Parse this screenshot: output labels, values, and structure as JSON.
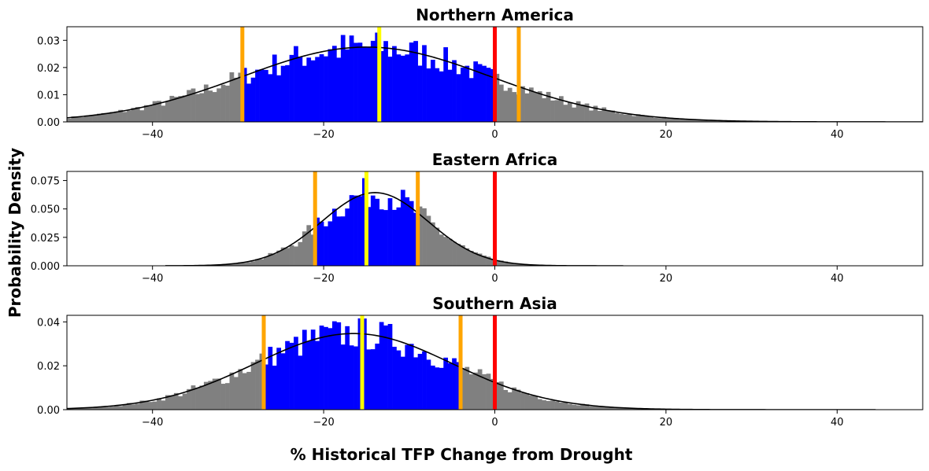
{
  "figure": {
    "ylabel": "Probability Density",
    "xlabel": "% Historical TFP Change from Drought"
  },
  "colors": {
    "tail": "#808080",
    "central": "#0000ff",
    "kde": "#000000",
    "median_line": "#ffff00",
    "range_lines": "#ffa500",
    "zero_line": "#ff0000"
  },
  "chart_data": [
    {
      "type": "bar",
      "title": "Northern America",
      "xlim": [
        -50,
        50
      ],
      "ylim": [
        0,
        0.035
      ],
      "x_ticks": [
        -40,
        -20,
        0,
        20,
        40
      ],
      "y_ticks": [
        0.0,
        0.01,
        0.02,
        0.03
      ],
      "y_tick_labels": [
        "0.00",
        "0.01",
        "0.02",
        "0.03"
      ],
      "distribution": {
        "mean": -15,
        "sd": 14.5,
        "kde_x_range": [
          -50,
          50
        ]
      },
      "shaded_range": [
        -29.5,
        0
      ],
      "vertical_lines": [
        {
          "x": -29.5,
          "role": "range_lines"
        },
        {
          "x": 2.8,
          "role": "range_lines"
        },
        {
          "x": -13.5,
          "role": "median_line"
        },
        {
          "x": 0,
          "role": "zero_line"
        }
      ]
    },
    {
      "type": "bar",
      "title": "Eastern Africa",
      "xlim": [
        -50,
        50
      ],
      "ylim": [
        0,
        0.083
      ],
      "x_ticks": [
        -40,
        -20,
        0,
        20,
        40
      ],
      "y_ticks": [
        0.0,
        0.025,
        0.05,
        0.075
      ],
      "y_tick_labels": [
        "0.000",
        "0.025",
        "0.050",
        "0.075"
      ],
      "distribution": {
        "mean": -14,
        "sd": 6.2,
        "kde_x_range": [
          -38.5,
          15
        ]
      },
      "shaded_range": [
        -21,
        -9
      ],
      "vertical_lines": [
        {
          "x": -21,
          "role": "range_lines"
        },
        {
          "x": -9,
          "role": "range_lines"
        },
        {
          "x": -15,
          "role": "median_line"
        },
        {
          "x": 0,
          "role": "zero_line"
        }
      ]
    },
    {
      "type": "bar",
      "title": "Southern Asia",
      "xlim": [
        -50,
        50
      ],
      "ylim": [
        0,
        0.043
      ],
      "x_ticks": [
        -40,
        -20,
        0,
        20,
        40
      ],
      "y_ticks": [
        0.0,
        0.02,
        0.04
      ],
      "y_tick_labels": [
        "0.00",
        "0.02",
        "0.04"
      ],
      "distribution": {
        "mean": -16.5,
        "sd": 11.5,
        "kde_x_range": [
          -50,
          44.5
        ]
      },
      "shaded_range": [
        -27,
        -4
      ],
      "vertical_lines": [
        {
          "x": -27,
          "role": "range_lines"
        },
        {
          "x": -4,
          "role": "range_lines"
        },
        {
          "x": -15.5,
          "role": "median_line"
        },
        {
          "x": 0,
          "role": "zero_line"
        }
      ]
    }
  ]
}
